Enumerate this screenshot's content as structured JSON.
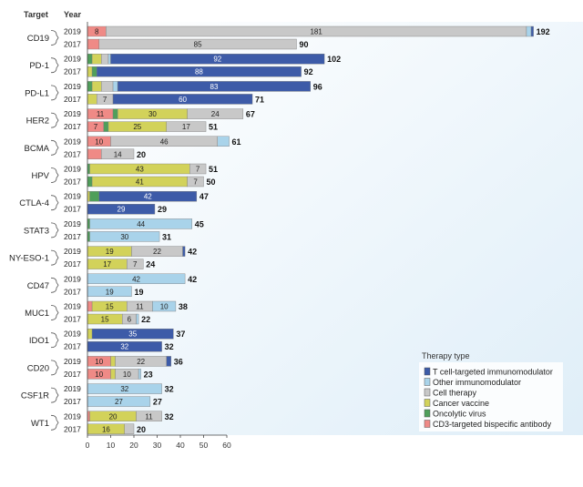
{
  "header": {
    "target_label": "Target",
    "year_label": "Year"
  },
  "legend": {
    "title": "Therapy type",
    "items": [
      {
        "key": "tcell",
        "label": "T cell-targeted immunomodulator",
        "color": "#3d5ba8"
      },
      {
        "key": "other",
        "label": "Other immunomodulator",
        "color": "#a9d3ea"
      },
      {
        "key": "cell",
        "label": "Cell therapy",
        "color": "#c8c8c8"
      },
      {
        "key": "vaccine",
        "label": "Cancer vaccine",
        "color": "#d2d25a"
      },
      {
        "key": "virus",
        "label": "Oncolytic virus",
        "color": "#4f9f5a"
      },
      {
        "key": "cd3",
        "label": "CD3-targeted bispecific antibody",
        "color": "#ef8a86"
      }
    ]
  },
  "chart_data": {
    "type": "bar",
    "orientation": "horizontal",
    "stacked": true,
    "segment_order": [
      "cd3",
      "virus",
      "vaccine",
      "cell",
      "other",
      "tcell"
    ],
    "xlim": [
      0,
      60
    ],
    "xticks": [
      "0",
      "10",
      "20",
      "30",
      "40",
      "50",
      "60"
    ],
    "groups": [
      {
        "target": "CD19",
        "rows": [
          {
            "year": "2019",
            "total": "192",
            "segments": [
              {
                "type": "cd3",
                "value": 8,
                "label": "8"
              },
              {
                "type": "cell",
                "value": 181,
                "label": "181"
              },
              {
                "type": "other",
                "value": 2
              },
              {
                "type": "tcell",
                "value": 1
              }
            ]
          },
          {
            "year": "2017",
            "total": "90",
            "segments": [
              {
                "type": "cd3",
                "value": 5
              },
              {
                "type": "cell",
                "value": 85,
                "label": "85"
              }
            ]
          }
        ]
      },
      {
        "target": "PD-1",
        "rows": [
          {
            "year": "2019",
            "total": "102",
            "segments": [
              {
                "type": "virus",
                "value": 2
              },
              {
                "type": "vaccine",
                "value": 4
              },
              {
                "type": "cell",
                "value": 3
              },
              {
                "type": "other",
                "value": 1
              },
              {
                "type": "tcell",
                "value": 92,
                "label": "92"
              }
            ]
          },
          {
            "year": "2017",
            "total": "92",
            "segments": [
              {
                "type": "vaccine",
                "value": 2
              },
              {
                "type": "virus",
                "value": 2
              },
              {
                "type": "tcell",
                "value": 88,
                "label": "88"
              }
            ]
          }
        ]
      },
      {
        "target": "PD-L1",
        "rows": [
          {
            "year": "2019",
            "total": "96",
            "segments": [
              {
                "type": "virus",
                "value": 2
              },
              {
                "type": "vaccine",
                "value": 4
              },
              {
                "type": "cell",
                "value": 5
              },
              {
                "type": "other",
                "value": 2
              },
              {
                "type": "tcell",
                "value": 83,
                "label": "83"
              }
            ]
          },
          {
            "year": "2017",
            "total": "71",
            "segments": [
              {
                "type": "vaccine",
                "value": 4
              },
              {
                "type": "cell",
                "value": 7,
                "label": "7"
              },
              {
                "type": "tcell",
                "value": 60,
                "label": "60"
              }
            ]
          }
        ]
      },
      {
        "target": "HER2",
        "rows": [
          {
            "year": "2019",
            "total": "67",
            "segments": [
              {
                "type": "cd3",
                "value": 11,
                "label": "11"
              },
              {
                "type": "virus",
                "value": 2
              },
              {
                "type": "vaccine",
                "value": 30,
                "label": "30"
              },
              {
                "type": "cell",
                "value": 24,
                "label": "24"
              }
            ]
          },
          {
            "year": "2017",
            "total": "51",
            "segments": [
              {
                "type": "cd3",
                "value": 7,
                "label": "7"
              },
              {
                "type": "virus",
                "value": 2
              },
              {
                "type": "vaccine",
                "value": 25,
                "label": "25"
              },
              {
                "type": "cell",
                "value": 17,
                "label": "17"
              }
            ]
          }
        ]
      },
      {
        "target": "BCMA",
        "rows": [
          {
            "year": "2019",
            "total": "61",
            "segments": [
              {
                "type": "cd3",
                "value": 10,
                "label": "10"
              },
              {
                "type": "cell",
                "value": 46,
                "label": "46"
              },
              {
                "type": "other",
                "value": 5
              }
            ]
          },
          {
            "year": "2017",
            "total": "20",
            "segments": [
              {
                "type": "cd3",
                "value": 6
              },
              {
                "type": "cell",
                "value": 14,
                "label": "14"
              }
            ]
          }
        ]
      },
      {
        "target": "HPV",
        "rows": [
          {
            "year": "2019",
            "total": "51",
            "segments": [
              {
                "type": "virus",
                "value": 1
              },
              {
                "type": "vaccine",
                "value": 43,
                "label": "43"
              },
              {
                "type": "cell",
                "value": 7,
                "label": "7"
              }
            ]
          },
          {
            "year": "2017",
            "total": "50",
            "segments": [
              {
                "type": "virus",
                "value": 2
              },
              {
                "type": "vaccine",
                "value": 41,
                "label": "41"
              },
              {
                "type": "cell",
                "value": 7,
                "label": "7"
              }
            ]
          }
        ]
      },
      {
        "target": "CTLA-4",
        "rows": [
          {
            "year": "2019",
            "total": "47",
            "segments": [
              {
                "type": "vaccine",
                "value": 1
              },
              {
                "type": "virus",
                "value": 4
              },
              {
                "type": "tcell",
                "value": 42,
                "label": "42"
              }
            ]
          },
          {
            "year": "2017",
            "total": "29",
            "segments": [
              {
                "type": "tcell",
                "value": 29,
                "label": "29"
              }
            ]
          }
        ]
      },
      {
        "target": "STAT3",
        "rows": [
          {
            "year": "2019",
            "total": "45",
            "segments": [
              {
                "type": "virus",
                "value": 1
              },
              {
                "type": "other",
                "value": 44,
                "label": "44"
              }
            ]
          },
          {
            "year": "2017",
            "total": "31",
            "segments": [
              {
                "type": "virus",
                "value": 1
              },
              {
                "type": "other",
                "value": 30,
                "label": "30"
              }
            ]
          }
        ]
      },
      {
        "target": "NY-ESO-1",
        "rows": [
          {
            "year": "2019",
            "total": "42",
            "segments": [
              {
                "type": "vaccine",
                "value": 19,
                "label": "19"
              },
              {
                "type": "cell",
                "value": 22,
                "label": "22"
              },
              {
                "type": "tcell",
                "value": 1
              }
            ]
          },
          {
            "year": "2017",
            "total": "24",
            "segments": [
              {
                "type": "vaccine",
                "value": 17,
                "label": "17"
              },
              {
                "type": "cell",
                "value": 7,
                "label": "7"
              }
            ]
          }
        ]
      },
      {
        "target": "CD47",
        "rows": [
          {
            "year": "2019",
            "total": "42",
            "segments": [
              {
                "type": "other",
                "value": 42,
                "label": "42"
              }
            ]
          },
          {
            "year": "2017",
            "total": "19",
            "segments": [
              {
                "type": "other",
                "value": 19,
                "label": "19"
              }
            ]
          }
        ]
      },
      {
        "target": "MUC1",
        "rows": [
          {
            "year": "2019",
            "total": "38",
            "segments": [
              {
                "type": "cd3",
                "value": 2
              },
              {
                "type": "vaccine",
                "value": 15,
                "label": "15"
              },
              {
                "type": "cell",
                "value": 11,
                "label": "11"
              },
              {
                "type": "other",
                "value": 10,
                "label": "10"
              }
            ]
          },
          {
            "year": "2017",
            "total": "22",
            "segments": [
              {
                "type": "vaccine",
                "value": 15,
                "label": "15"
              },
              {
                "type": "cell",
                "value": 6,
                "label": "6"
              },
              {
                "type": "other",
                "value": 1
              }
            ]
          }
        ]
      },
      {
        "target": "IDO1",
        "rows": [
          {
            "year": "2019",
            "total": "37",
            "segments": [
              {
                "type": "vaccine",
                "value": 2
              },
              {
                "type": "tcell",
                "value": 35,
                "label": "35"
              }
            ]
          },
          {
            "year": "2017",
            "total": "32",
            "segments": [
              {
                "type": "tcell",
                "value": 32,
                "label": "32"
              }
            ]
          }
        ]
      },
      {
        "target": "CD20",
        "rows": [
          {
            "year": "2019",
            "total": "36",
            "segments": [
              {
                "type": "cd3",
                "value": 10,
                "label": "10"
              },
              {
                "type": "vaccine",
                "value": 2
              },
              {
                "type": "cell",
                "value": 22,
                "label": "22"
              },
              {
                "type": "tcell",
                "value": 2
              }
            ]
          },
          {
            "year": "2017",
            "total": "23",
            "segments": [
              {
                "type": "cd3",
                "value": 10,
                "label": "10"
              },
              {
                "type": "vaccine",
                "value": 2
              },
              {
                "type": "cell",
                "value": 10,
                "label": "10"
              },
              {
                "type": "other",
                "value": 1
              }
            ]
          }
        ]
      },
      {
        "target": "CSF1R",
        "rows": [
          {
            "year": "2019",
            "total": "32",
            "segments": [
              {
                "type": "other",
                "value": 32,
                "label": "32"
              }
            ]
          },
          {
            "year": "2017",
            "total": "27",
            "segments": [
              {
                "type": "other",
                "value": 27,
                "label": "27"
              }
            ]
          }
        ]
      },
      {
        "target": "WT1",
        "rows": [
          {
            "year": "2019",
            "total": "32",
            "segments": [
              {
                "type": "cd3",
                "value": 1
              },
              {
                "type": "vaccine",
                "value": 20,
                "label": "20"
              },
              {
                "type": "cell",
                "value": 11,
                "label": "11"
              }
            ]
          },
          {
            "year": "2017",
            "total": "20",
            "segments": [
              {
                "type": "vaccine",
                "value": 16,
                "label": "16"
              },
              {
                "type": "cell",
                "value": 4
              }
            ]
          }
        ]
      }
    ]
  }
}
